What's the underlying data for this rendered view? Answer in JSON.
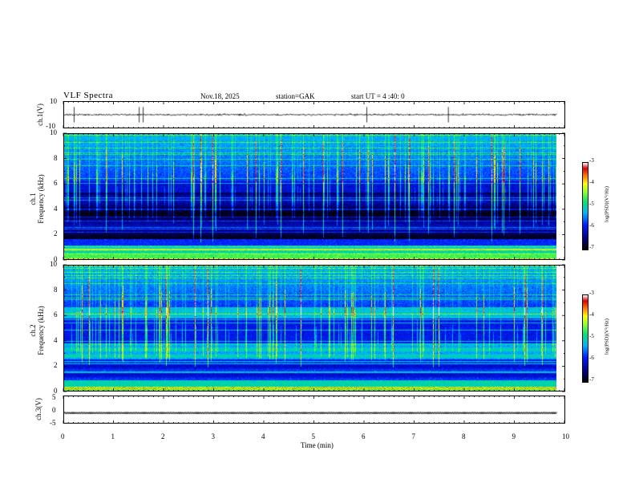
{
  "header": {
    "title": "VLF Spectra",
    "date": "Nov.18, 2025",
    "station": "station=GAK",
    "start_ut": "start UT =  4 :40: 0"
  },
  "chart_data": [
    {
      "type": "line",
      "name": "ch1-waveform",
      "ylabel": "ch.1(V)",
      "ylim": [
        -10,
        10
      ],
      "yticks": [
        "10",
        "-10"
      ],
      "xlim": [
        0,
        10
      ],
      "mean_level": 0,
      "approx_range": [
        -2.5,
        2.5
      ],
      "spikes_at_min": [
        0.2,
        1.5,
        1.58,
        6.05,
        7.68
      ]
    },
    {
      "type": "heatmap",
      "name": "ch1-spectrogram",
      "ylabel": "ch.1\nFrequency (kHz)",
      "ylim": [
        0,
        10
      ],
      "yticks": [
        "0",
        "2",
        "4",
        "6",
        "8",
        "10"
      ],
      "xlim": [
        0,
        9.85
      ],
      "colorbar": {
        "label": "log(PSD)(V²/Hz)",
        "range": [
          -7,
          -3
        ],
        "ticks": [
          "-3",
          "-4",
          "-5",
          "-6",
          "-7"
        ]
      },
      "features": {
        "strong_band_kHz": [
          0,
          1.0
        ],
        "quiet_band_kHz": [
          1.5,
          5.3
        ],
        "emission_band_kHz": [
          5.3,
          10
        ],
        "max_log_psd": -3
      }
    },
    {
      "type": "heatmap",
      "name": "ch2-spectrogram",
      "ylabel": "ch.2\nFrequency (kHz)",
      "ylim": [
        0,
        10
      ],
      "yticks": [
        "0",
        "2",
        "4",
        "6",
        "8",
        "10"
      ],
      "xlim": [
        0,
        9.85
      ],
      "colorbar": {
        "label": "log(PSD)(V²/Hz)",
        "range": [
          -7,
          -3
        ],
        "ticks": [
          "-3",
          "-4",
          "-5",
          "-6",
          "-7"
        ]
      },
      "features": {
        "strong_band_kHz": [
          0,
          0.8
        ],
        "green_band_kHz": [
          2.5,
          3.8
        ],
        "emission_line_kHz": 6.2,
        "max_log_psd": -3
      }
    },
    {
      "type": "line",
      "name": "ch3-waveform",
      "ylabel": "ch.3(V)",
      "ylim": [
        -5,
        5
      ],
      "yticks": [
        "5",
        "0",
        "-5"
      ],
      "xlim": [
        0,
        10
      ],
      "mean_level": -1.3
    }
  ],
  "xaxis": {
    "label": "Time  (min)",
    "ticks": [
      "0",
      "1",
      "2",
      "3",
      "4",
      "5",
      "6",
      "7",
      "8",
      "9",
      "10"
    ]
  }
}
